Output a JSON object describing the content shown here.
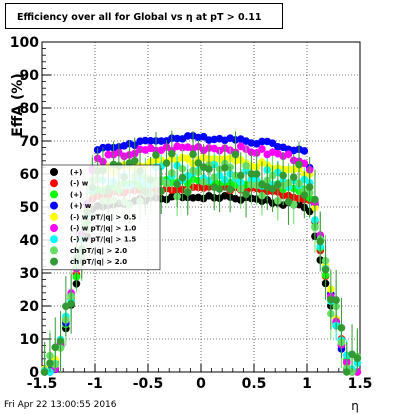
{
  "chart_data": {
    "type": "scatter",
    "title": "Efficiency over all for Global vs   η at pT > 0.11",
    "xlabel": "η",
    "ylabel": "EffA (%)",
    "xlim": [
      -1.5,
      1.5
    ],
    "ylim": [
      0,
      100
    ],
    "x_ticks": [
      "-1.5",
      "-1",
      "-0.5",
      "0",
      "0.5",
      "1",
      "1.5"
    ],
    "y_ticks": [
      "0",
      "10",
      "20",
      "30",
      "40",
      "50",
      "60",
      "70",
      "80",
      "90",
      "100"
    ],
    "grid": true,
    "legend_position": "left-middle",
    "series": [
      {
        "name": "(+)",
        "color": "#000000",
        "plateau": 53,
        "noise": 0.6,
        "err": 0.8,
        "edge_shift": 0.0,
        "seed": 1
      },
      {
        "name": "(-) w",
        "color": "#ff0000",
        "plateau": 56,
        "noise": 0.8,
        "err": 1.0,
        "edge_shift": 0.01,
        "seed": 2
      },
      {
        "name": "(+)",
        "color": "#00ff00",
        "plateau": 58,
        "noise": 1.0,
        "err": 1.2,
        "edge_shift": 0.0,
        "seed": 3
      },
      {
        "name": "(+) w",
        "color": "#0000ff",
        "plateau": 71,
        "noise": 0.7,
        "err": 0.8,
        "edge_shift": -0.02,
        "seed": 4
      },
      {
        "name": "(-) w pT/|q| > 0.5",
        "color": "#ffff00",
        "plateau": 64,
        "noise": 1.2,
        "err": 1.5,
        "edge_shift": 0.0,
        "seed": 5
      },
      {
        "name": "(-) w pT/|q| > 1.0",
        "color": "#ff00ff",
        "plateau": 68,
        "noise": 1.0,
        "err": 1.2,
        "edge_shift": -0.01,
        "seed": 6
      },
      {
        "name": "(-) w pT/|q| > 1.5",
        "color": "#00ffff",
        "plateau": 60,
        "noise": 3.0,
        "err": 3.5,
        "edge_shift": 0.01,
        "seed": 7
      },
      {
        "name": "ch pT/|q| > 2.0",
        "color": "#66dd66",
        "plateau": 58,
        "noise": 6.0,
        "err": 6.0,
        "edge_shift": 0.0,
        "seed": 8
      },
      {
        "name": "ch pT/|q| > 2.0",
        "color": "#339933",
        "plateau": 60,
        "noise": 6.5,
        "err": 7.0,
        "edge_shift": 0.02,
        "seed": 9
      }
    ]
  },
  "legend_labels": [
    "(+)",
    "(-) w",
    "(+)",
    "(+) w",
    "(-) w pT/|q| > 0.5",
    "(-) w pT/|q| > 1.0",
    "(-) w pT/|q| > 1.5",
    "ch pT/|q| > 2.0",
    "ch pT/|q| > 2.0"
  ],
  "footer_text": "Fri Apr 22 13:00:55 2016"
}
